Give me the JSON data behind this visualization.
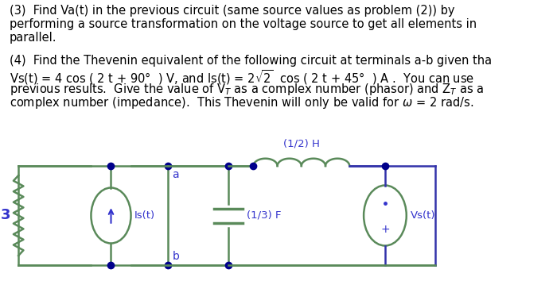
{
  "background_color": "#ffffff",
  "text_color": "#000000",
  "circuit_green": "#5a8a5a",
  "circuit_blue": "#3333aa",
  "node_color": "#00008b",
  "label_color": "#3333cc",
  "line1": "(3)  Find Va(t) in the previous circuit (same source values as problem (2)) by",
  "line2": "performing a source transformation on the voltage source to get all elements in",
  "line3": "parallel.",
  "line4": "(4)  Find the Thevenin equivalent of the following circuit at terminals a-b given tha",
  "line5a": "Vs(t) = 4 cos ( 2 t + 90",
  "line5b": " ) V, and Is(t) = 2",
  "line5c": "2  cos ( 2 t + 45",
  "line5d": " ) A .  You can use",
  "line6": "previous results.  Give the value of V",
  "line6b": " as a complex number (phasor) and Z",
  "line6c": " as a",
  "line7": "complex number (impedance).  This Thevenin will only be valid for",
  "line7b": " = 2 rad/s.",
  "resistor_label": "3",
  "is_label": "Is(t)",
  "inductor_label": "(1/2) H",
  "capacitor_label": "(1/3) F",
  "vs_label": "Vs(t)",
  "node_a": "a",
  "node_b": "b",
  "fs_text": 10.5,
  "fs_circuit": 9.5
}
